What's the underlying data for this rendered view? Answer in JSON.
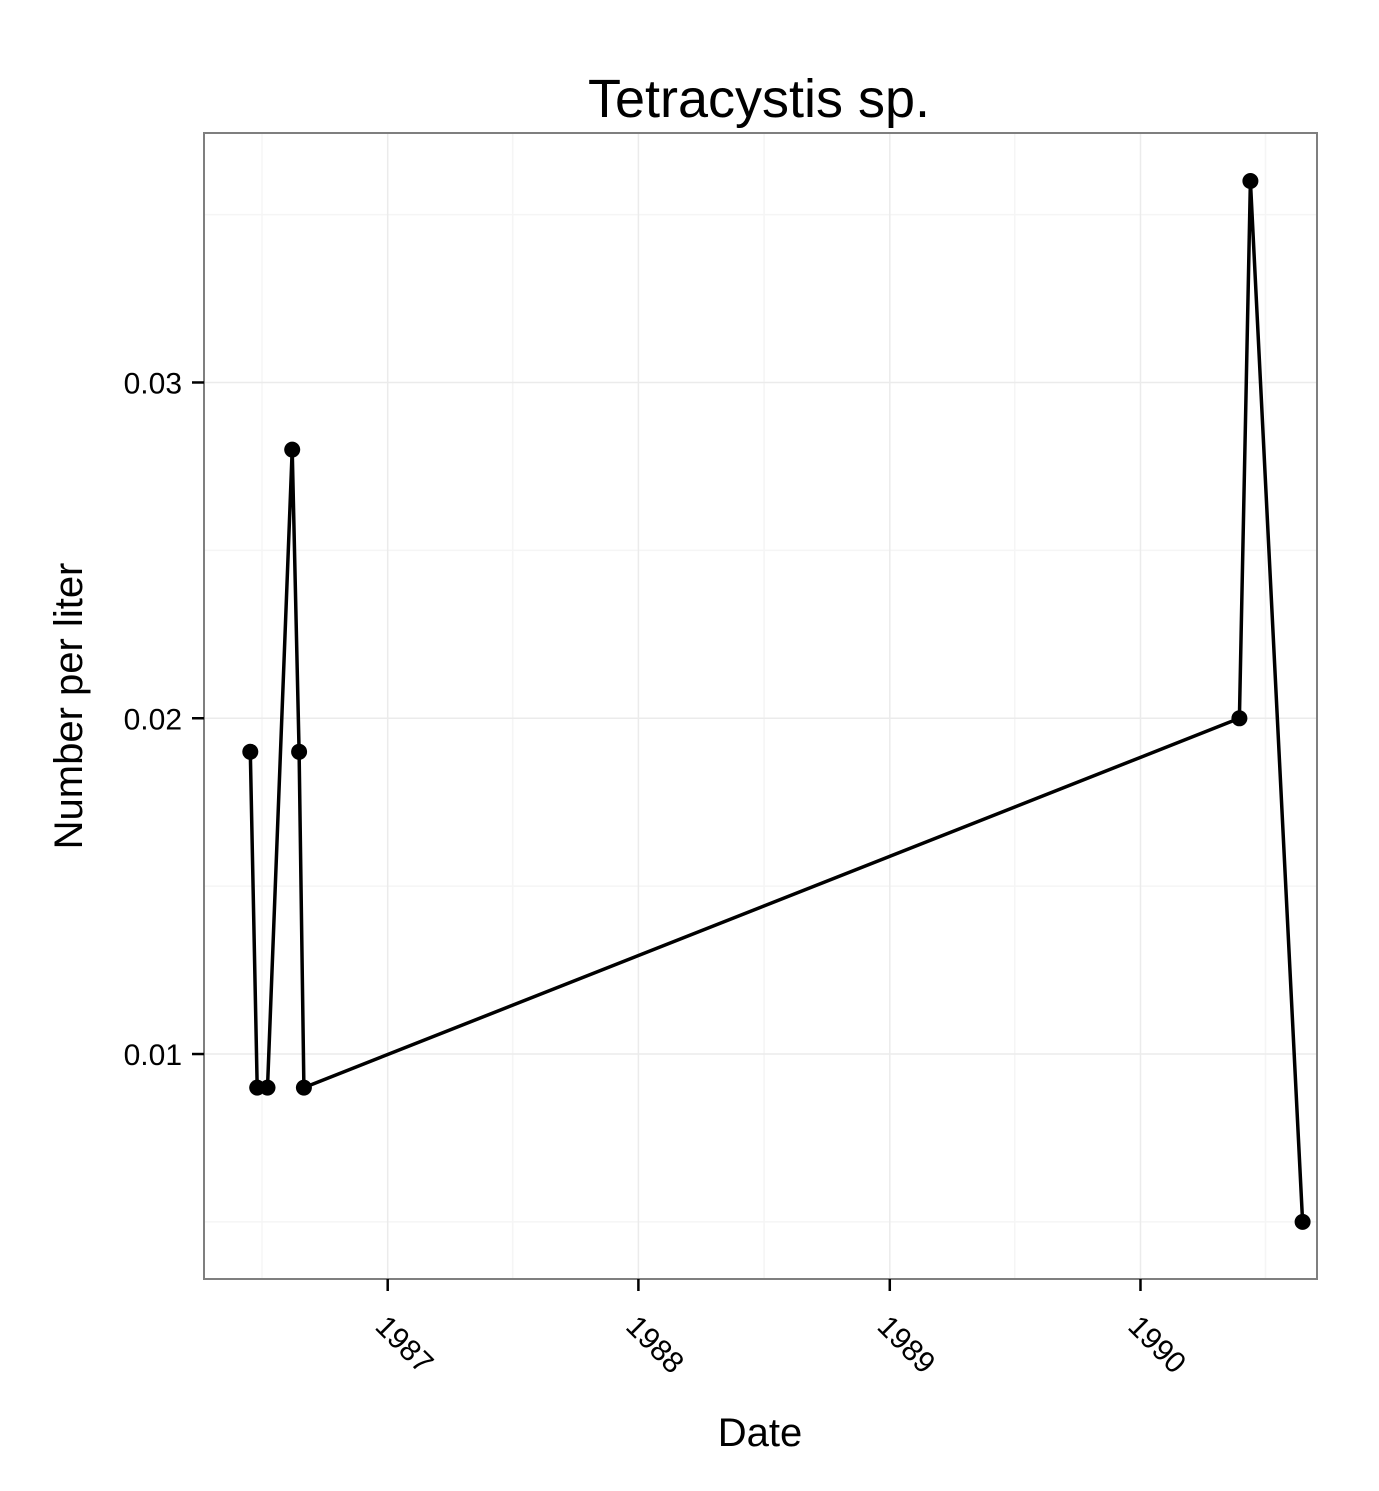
{
  "chart_data": {
    "type": "line",
    "title": "Tetracystis sp.",
    "xlabel": "Date",
    "ylabel": "Number per liter",
    "x_ticks": [
      "1987",
      "1988",
      "1989",
      "1990"
    ],
    "y_ticks": [
      "0.01",
      "0.02",
      "0.03"
    ],
    "xlim": [
      "1986-04-10",
      "1990-09-15"
    ],
    "ylim": [
      0.0033,
      0.0374
    ],
    "grid": true,
    "series": [
      {
        "x": [
          "1986-06-15",
          "1986-06-25",
          "1986-07-10",
          "1986-08-15",
          "1986-08-25",
          "1986-09-01",
          "1990-05-25",
          "1990-06-10",
          "1990-08-25"
        ],
        "y": [
          0.019,
          0.009,
          0.009,
          0.028,
          0.019,
          0.009,
          0.02,
          0.036,
          0.005
        ]
      }
    ],
    "colors": {
      "line": "#000000",
      "point": "#000000",
      "grid_major": "#ebebeb",
      "grid_minor": "#f5f5f5",
      "panel_border": "#7f7f7f"
    }
  }
}
